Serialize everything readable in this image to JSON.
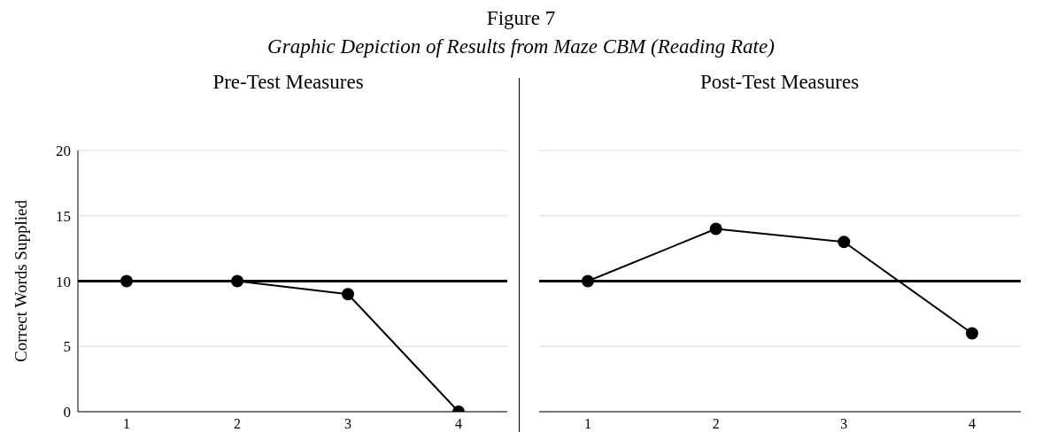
{
  "chart_data": [
    {
      "type": "line",
      "title": "Pre-Test Measures",
      "annotations": [
        "Figure 7",
        "Graphic Depiction of Results from Maze CBM (Reading Rate)"
      ],
      "ylabel": "Correct Words Supplied",
      "categories": [
        "1",
        "2",
        "3",
        "4"
      ],
      "series": [
        {
          "color": "#000000",
          "values": [
            10,
            10,
            9,
            0
          ]
        }
      ],
      "ylim": [
        0,
        20
      ],
      "yticks": [
        0,
        5,
        10,
        15,
        20
      ],
      "grid": "y",
      "marker": "circle",
      "line_style": "solid",
      "ref_lines": [
        {
          "axis": "y",
          "value": 10,
          "color": "#000000"
        }
      ]
    },
    {
      "type": "line",
      "title": "Post-Test Measures",
      "categories": [
        "1",
        "2",
        "3",
        "4"
      ],
      "series": [
        {
          "color": "#000000",
          "values": [
            10,
            14,
            13,
            6
          ]
        }
      ],
      "ylim": [
        0,
        20
      ],
      "yticks": [
        0,
        5,
        10,
        15,
        20
      ],
      "grid": "y",
      "marker": "circle",
      "line_style": "solid",
      "tick_labels": "x",
      "ref_lines": [
        {
          "axis": "y",
          "value": 10,
          "color": "#000000"
        }
      ]
    }
  ]
}
